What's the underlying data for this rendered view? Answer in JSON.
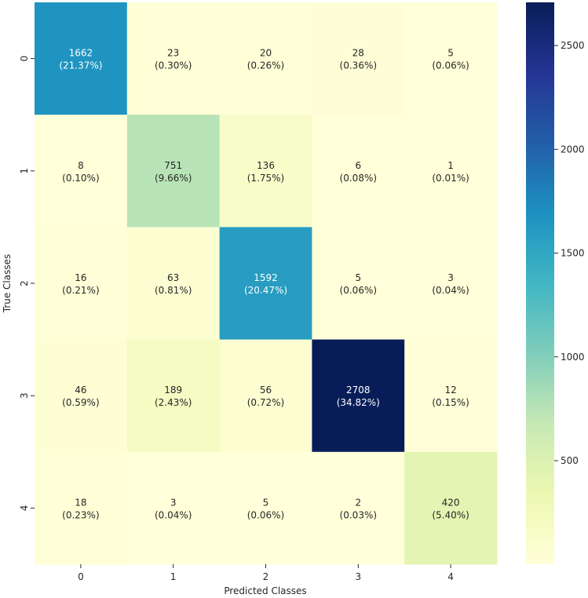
{
  "chart_data": {
    "type": "heatmap",
    "title": "",
    "xlabel": "Predicted Classes",
    "ylabel": "True Classes",
    "x_categories": [
      "0",
      "1",
      "2",
      "3",
      "4"
    ],
    "y_categories": [
      "0",
      "1",
      "2",
      "3",
      "4"
    ],
    "values": [
      [
        1662,
        23,
        20,
        28,
        5
      ],
      [
        8,
        751,
        136,
        6,
        1
      ],
      [
        16,
        63,
        1592,
        5,
        3
      ],
      [
        46,
        189,
        56,
        2708,
        12
      ],
      [
        18,
        3,
        5,
        2,
        420
      ]
    ],
    "percentages": [
      [
        "(21.37%)",
        "(0.30%)",
        "(0.26%)",
        "(0.36%)",
        "(0.06%)"
      ],
      [
        "(0.10%)",
        "(9.66%)",
        "(1.75%)",
        "(0.08%)",
        "(0.01%)"
      ],
      [
        "(0.21%)",
        "(0.81%)",
        "(20.47%)",
        "(0.06%)",
        "(0.04%)"
      ],
      [
        "(0.59%)",
        "(2.43%)",
        "(0.72%)",
        "(34.82%)",
        "(0.15%)"
      ],
      [
        "(0.23%)",
        "(0.04%)",
        "(0.06%)",
        "(0.03%)",
        "(5.40%)"
      ]
    ],
    "colormap": "YlGnBu",
    "vmin": 1,
    "vmax": 2708,
    "colorbar_ticks": [
      "500",
      "1000",
      "1500",
      "2000",
      "2500"
    ],
    "colorbar_tick_values": [
      500,
      1000,
      1500,
      2000,
      2500
    ],
    "grid": false
  }
}
